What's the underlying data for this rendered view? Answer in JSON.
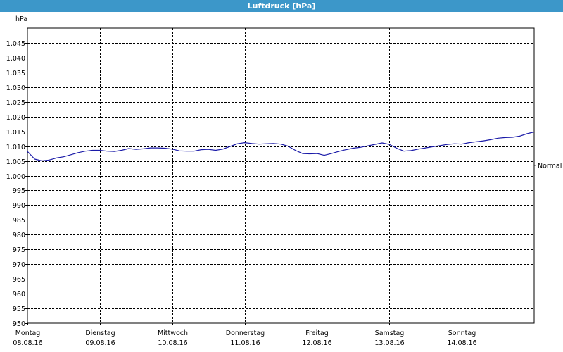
{
  "window": {
    "title": "Luftdruck [hPa]"
  },
  "chart_data": {
    "type": "line",
    "title": "Luftdruck [hPa]",
    "ylabel": "hPa",
    "ylim": [
      950,
      1050
    ],
    "yticks": [
      {
        "value": 950,
        "label": "950"
      },
      {
        "value": 955,
        "label": "955"
      },
      {
        "value": 960,
        "label": "960"
      },
      {
        "value": 965,
        "label": "965"
      },
      {
        "value": 970,
        "label": "970"
      },
      {
        "value": 975,
        "label": "975"
      },
      {
        "value": 980,
        "label": "980"
      },
      {
        "value": 985,
        "label": "985"
      },
      {
        "value": 990,
        "label": "990"
      },
      {
        "value": 995,
        "label": "995"
      },
      {
        "value": 1000,
        "label": "1.000"
      },
      {
        "value": 1005,
        "label": "1.005"
      },
      {
        "value": 1010,
        "label": "1.010"
      },
      {
        "value": 1015,
        "label": "1.015"
      },
      {
        "value": 1020,
        "label": "1.020"
      },
      {
        "value": 1025,
        "label": "1.025"
      },
      {
        "value": 1030,
        "label": "1.030"
      },
      {
        "value": 1035,
        "label": "1.035"
      },
      {
        "value": 1040,
        "label": "1.040"
      },
      {
        "value": 1045,
        "label": "1.045"
      }
    ],
    "xlim": [
      0,
      7
    ],
    "xticks": [
      {
        "value": 0,
        "day": "Montag",
        "date": "08.08.16"
      },
      {
        "value": 1,
        "day": "Dienstag",
        "date": "09.08.16"
      },
      {
        "value": 2,
        "day": "Mittwoch",
        "date": "10.08.16"
      },
      {
        "value": 3,
        "day": "Donnerstag",
        "date": "11.08.16"
      },
      {
        "value": 4,
        "day": "Freitag",
        "date": "12.08.16"
      },
      {
        "value": 5,
        "day": "Samstag",
        "date": "13.08.16"
      },
      {
        "value": 6,
        "day": "Sonntag",
        "date": "14.08.16"
      }
    ],
    "grid": true,
    "reference": {
      "label": "Normal",
      "value": 1003.5
    },
    "series": [
      {
        "color": "#1a1aa8",
        "x": [
          0,
          0.1,
          0.2,
          0.3,
          0.4,
          0.5,
          0.6,
          0.7,
          0.8,
          0.9,
          1.0,
          1.1,
          1.2,
          1.3,
          1.4,
          1.5,
          1.6,
          1.7,
          1.8,
          1.9,
          2.0,
          2.1,
          2.2,
          2.3,
          2.4,
          2.5,
          2.6,
          2.7,
          2.8,
          2.9,
          3.0,
          3.1,
          3.2,
          3.3,
          3.4,
          3.5,
          3.6,
          3.7,
          3.8,
          3.9,
          4.0,
          4.1,
          4.2,
          4.3,
          4.4,
          4.5,
          4.6,
          4.7,
          4.8,
          4.9,
          5.0,
          5.1,
          5.2,
          5.3,
          5.4,
          5.5,
          5.6,
          5.7,
          5.8,
          5.9,
          6.0,
          6.1,
          6.2,
          6.3,
          6.4,
          6.5,
          6.6,
          6.7,
          6.8,
          6.9,
          7.0
        ],
        "y": [
          1008.2,
          1005.6,
          1005.0,
          1005.3,
          1006.0,
          1006.4,
          1007.1,
          1007.8,
          1008.3,
          1008.6,
          1008.6,
          1008.3,
          1008.2,
          1008.6,
          1009.2,
          1008.9,
          1009.1,
          1009.4,
          1009.4,
          1009.3,
          1009.0,
          1008.4,
          1008.3,
          1008.3,
          1008.8,
          1008.9,
          1008.6,
          1009.0,
          1009.9,
          1010.8,
          1011.2,
          1010.9,
          1010.7,
          1010.8,
          1010.9,
          1010.7,
          1010.0,
          1008.6,
          1007.5,
          1007.4,
          1007.5,
          1006.9,
          1007.5,
          1008.2,
          1008.8,
          1009.3,
          1009.6,
          1010.1,
          1010.6,
          1011.1,
          1010.6,
          1009.3,
          1008.3,
          1008.5,
          1009.0,
          1009.4,
          1009.8,
          1010.2,
          1010.6,
          1010.8,
          1010.7,
          1011.2,
          1011.5,
          1011.8,
          1012.2,
          1012.7,
          1012.9,
          1013.0,
          1013.4,
          1014.2,
          1014.8
        ]
      }
    ]
  }
}
